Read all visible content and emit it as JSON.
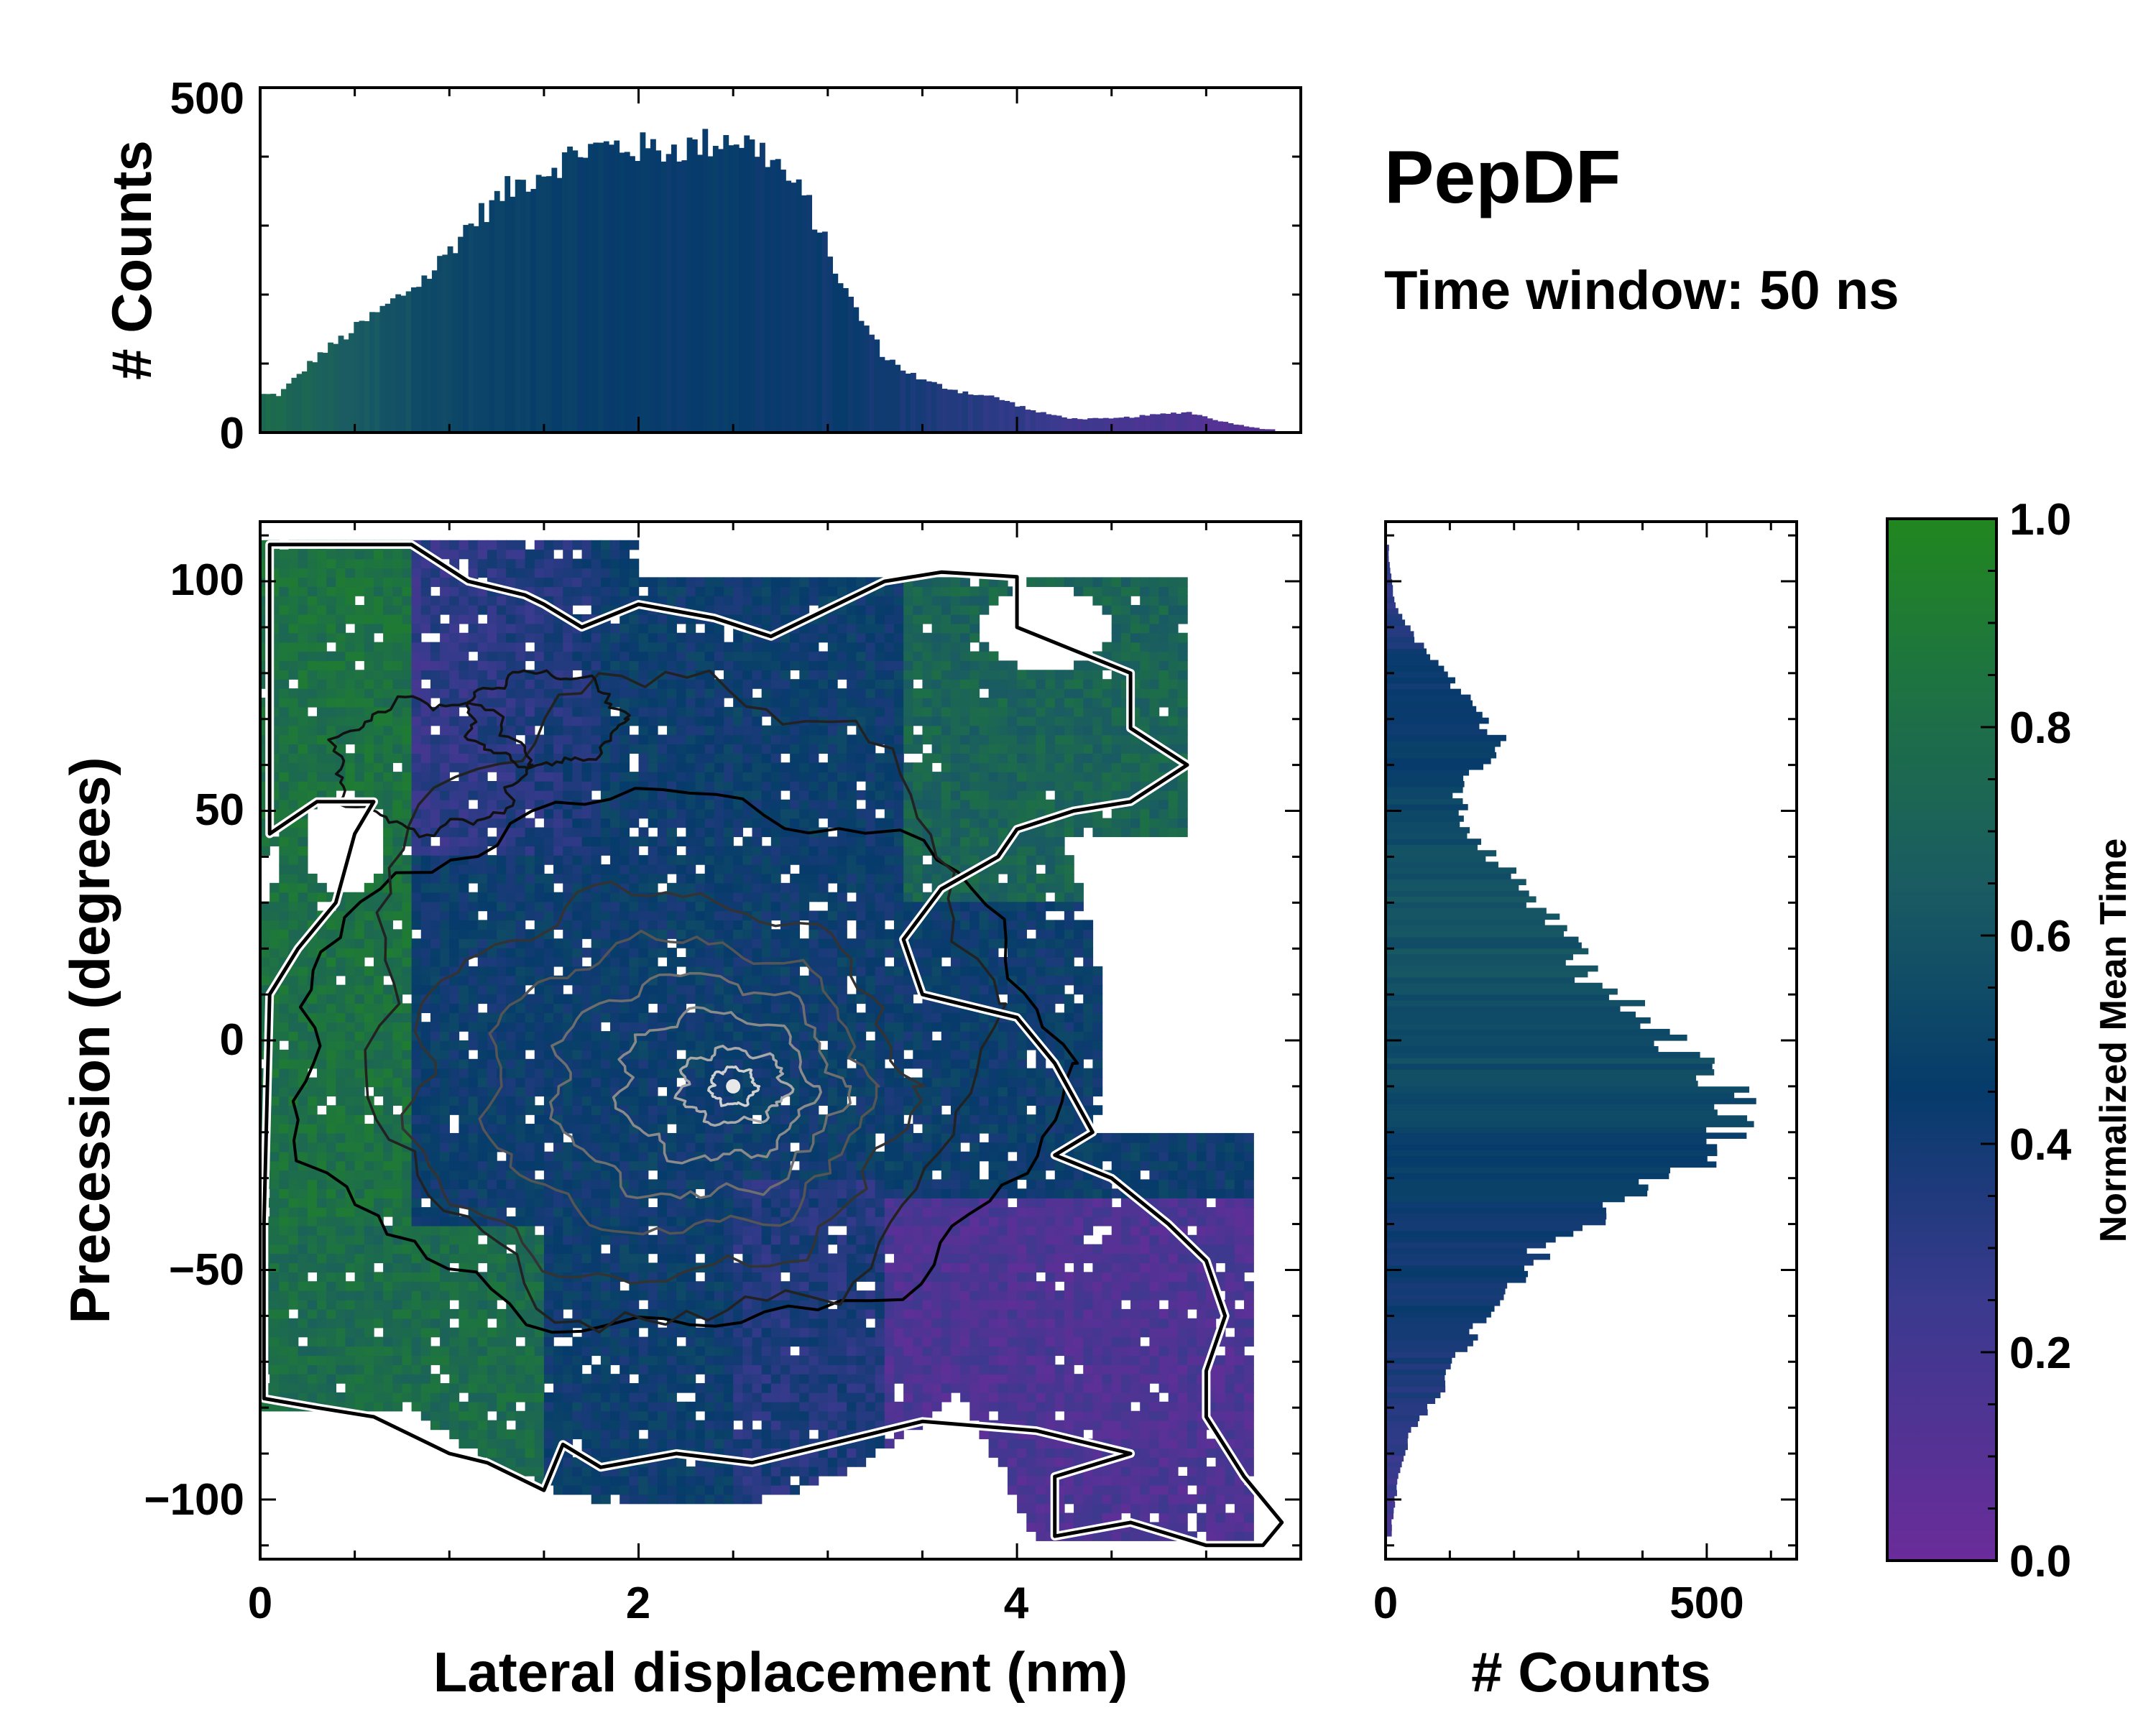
{
  "title": "PepDF",
  "subtitle": "Time window: 50 ns",
  "colors": {
    "low": "#6a2c9a",
    "mid": "#063b6b",
    "high": "#21871f",
    "contour_outer": "#000000",
    "contour_inner": "#888888"
  },
  "chart_data": [
    {
      "id": "top-histogram",
      "type": "bar",
      "xlim": [
        0,
        5.5
      ],
      "ylim": [
        0,
        500
      ],
      "yticks": [
        "0",
        "500"
      ],
      "ylabel": "# Counts",
      "bin_centers": [
        0.1,
        0.3,
        0.5,
        0.7,
        0.9,
        1.1,
        1.3,
        1.5,
        1.7,
        1.9,
        2.1,
        2.3,
        2.5,
        2.7,
        2.9,
        3.1,
        3.3,
        3.5,
        3.7,
        3.9,
        4.1,
        4.3,
        4.5,
        4.7,
        4.9,
        5.1,
        5.3
      ],
      "values": [
        55,
        110,
        150,
        190,
        230,
        300,
        350,
        380,
        410,
        415,
        410,
        415,
        430,
        400,
        330,
        200,
        110,
        75,
        60,
        50,
        30,
        20,
        20,
        25,
        30,
        15,
        5
      ],
      "mean_time": [
        0.75,
        0.7,
        0.65,
        0.6,
        0.55,
        0.5,
        0.48,
        0.47,
        0.46,
        0.46,
        0.45,
        0.45,
        0.45,
        0.44,
        0.43,
        0.42,
        0.4,
        0.37,
        0.34,
        0.3,
        0.26,
        0.22,
        0.19,
        0.17,
        0.15,
        0.12,
        0.1
      ]
    },
    {
      "id": "right-histogram",
      "type": "bar",
      "orientation": "horizontal",
      "ylim": [
        -113,
        113
      ],
      "xlim": [
        0,
        640
      ],
      "xticks": [
        "0",
        "500"
      ],
      "xlabel": "# Counts",
      "bin_centers": [
        105,
        95,
        85,
        75,
        65,
        55,
        45,
        35,
        25,
        15,
        5,
        -5,
        -15,
        -25,
        -35,
        -45,
        -55,
        -65,
        -75,
        -85,
        -95,
        -105
      ],
      "values": [
        5,
        15,
        60,
        120,
        180,
        110,
        130,
        200,
        260,
        310,
        400,
        480,
        560,
        500,
        380,
        250,
        180,
        130,
        90,
        40,
        20,
        10
      ],
      "mean_time": [
        0.3,
        0.3,
        0.4,
        0.45,
        0.45,
        0.5,
        0.55,
        0.58,
        0.6,
        0.58,
        0.55,
        0.55,
        0.52,
        0.48,
        0.45,
        0.42,
        0.42,
        0.4,
        0.35,
        0.3,
        0.25,
        0.2
      ]
    },
    {
      "id": "main-heatmap",
      "type": "heatmap",
      "xlabel": "Lateral displacement (nm)",
      "ylabel": "Precession (degrees)",
      "xlim": [
        0,
        5.5
      ],
      "ylim": [
        -113,
        113
      ],
      "xticks": [
        "0",
        "2",
        "4"
      ],
      "yticks": [
        "−100",
        "−50",
        "0",
        "50",
        "100"
      ],
      "density_peak": [
        2.5,
        -10
      ],
      "contours": true
    },
    {
      "id": "colorbar",
      "type": "colorbar",
      "label": "Normalized Mean Time",
      "range": [
        0,
        1
      ],
      "ticks": [
        "0.0",
        "0.2",
        "0.4",
        "0.6",
        "0.8",
        "1.0"
      ]
    }
  ]
}
